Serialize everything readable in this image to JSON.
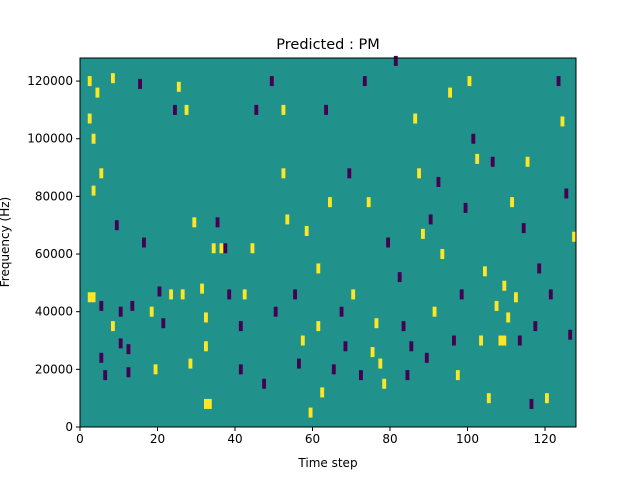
{
  "chart_data": {
    "type": "heatmap",
    "title": "Predicted : PM",
    "xlabel": "Time step",
    "ylabel": "Frequency (Hz)",
    "xlim": [
      0,
      128
    ],
    "ylim": [
      0,
      128000
    ],
    "xticks": [
      0,
      20,
      40,
      60,
      80,
      100,
      120
    ],
    "yticks": [
      0,
      20000,
      40000,
      60000,
      80000,
      100000,
      120000
    ],
    "grid": false,
    "colors": {
      "background": "#21918c",
      "high": "#fde725",
      "low": "#440154"
    },
    "note_cells": [
      {
        "t": 2,
        "f": 45000,
        "dur": 2,
        "level": "high"
      },
      {
        "t": 2,
        "f": 120000,
        "dur": 1,
        "level": "high"
      },
      {
        "t": 2,
        "f": 107000,
        "dur": 1,
        "level": "high"
      },
      {
        "t": 3,
        "f": 82000,
        "dur": 1,
        "level": "high"
      },
      {
        "t": 3,
        "f": 100000,
        "dur": 1,
        "level": "high"
      },
      {
        "t": 4,
        "f": 116000,
        "dur": 1,
        "level": "high"
      },
      {
        "t": 5,
        "f": 88000,
        "dur": 1,
        "level": "high"
      },
      {
        "t": 5,
        "f": 42000,
        "dur": 1,
        "level": "low"
      },
      {
        "t": 5,
        "f": 24000,
        "dur": 1,
        "level": "low"
      },
      {
        "t": 6,
        "f": 18000,
        "dur": 1,
        "level": "low"
      },
      {
        "t": 8,
        "f": 121000,
        "dur": 1,
        "level": "high"
      },
      {
        "t": 8,
        "f": 35000,
        "dur": 1,
        "level": "high"
      },
      {
        "t": 9,
        "f": 70000,
        "dur": 1,
        "level": "low"
      },
      {
        "t": 10,
        "f": 40000,
        "dur": 1,
        "level": "low"
      },
      {
        "t": 10,
        "f": 29000,
        "dur": 1,
        "level": "low"
      },
      {
        "t": 12,
        "f": 19000,
        "dur": 1,
        "level": "low"
      },
      {
        "t": 12,
        "f": 27000,
        "dur": 1,
        "level": "low"
      },
      {
        "t": 13,
        "f": 42000,
        "dur": 1,
        "level": "low"
      },
      {
        "t": 15,
        "f": 119000,
        "dur": 1,
        "level": "low"
      },
      {
        "t": 16,
        "f": 64000,
        "dur": 1,
        "level": "low"
      },
      {
        "t": 18,
        "f": 40000,
        "dur": 1,
        "level": "high"
      },
      {
        "t": 19,
        "f": 20000,
        "dur": 1,
        "level": "high"
      },
      {
        "t": 20,
        "f": 47000,
        "dur": 1,
        "level": "low"
      },
      {
        "t": 21,
        "f": 36000,
        "dur": 1,
        "level": "low"
      },
      {
        "t": 23,
        "f": 46000,
        "dur": 1,
        "level": "high"
      },
      {
        "t": 24,
        "f": 110000,
        "dur": 1,
        "level": "low"
      },
      {
        "t": 25,
        "f": 118000,
        "dur": 1,
        "level": "high"
      },
      {
        "t": 26,
        "f": 46000,
        "dur": 1,
        "level": "high"
      },
      {
        "t": 27,
        "f": 110000,
        "dur": 1,
        "level": "high"
      },
      {
        "t": 28,
        "f": 22000,
        "dur": 1,
        "level": "high"
      },
      {
        "t": 29,
        "f": 71000,
        "dur": 1,
        "level": "high"
      },
      {
        "t": 31,
        "f": 48000,
        "dur": 1,
        "level": "high"
      },
      {
        "t": 32,
        "f": 28000,
        "dur": 1,
        "level": "high"
      },
      {
        "t": 32,
        "f": 38000,
        "dur": 1,
        "level": "high"
      },
      {
        "t": 32,
        "f": 8000,
        "dur": 2,
        "level": "high"
      },
      {
        "t": 34,
        "f": 62000,
        "dur": 1,
        "level": "high"
      },
      {
        "t": 35,
        "f": 71000,
        "dur": 1,
        "level": "low"
      },
      {
        "t": 36,
        "f": 62000,
        "dur": 1,
        "level": "high"
      },
      {
        "t": 37,
        "f": 62000,
        "dur": 1,
        "level": "low"
      },
      {
        "t": 38,
        "f": 46000,
        "dur": 1,
        "level": "low"
      },
      {
        "t": 41,
        "f": 35000,
        "dur": 1,
        "level": "low"
      },
      {
        "t": 41,
        "f": 20000,
        "dur": 1,
        "level": "low"
      },
      {
        "t": 42,
        "f": 46000,
        "dur": 1,
        "level": "high"
      },
      {
        "t": 44,
        "f": 62000,
        "dur": 1,
        "level": "high"
      },
      {
        "t": 45,
        "f": 110000,
        "dur": 1,
        "level": "low"
      },
      {
        "t": 47,
        "f": 15000,
        "dur": 1,
        "level": "low"
      },
      {
        "t": 49,
        "f": 120000,
        "dur": 1,
        "level": "low"
      },
      {
        "t": 50,
        "f": 40000,
        "dur": 1,
        "level": "low"
      },
      {
        "t": 52,
        "f": 110000,
        "dur": 1,
        "level": "high"
      },
      {
        "t": 52,
        "f": 88000,
        "dur": 1,
        "level": "high"
      },
      {
        "t": 53,
        "f": 72000,
        "dur": 1,
        "level": "high"
      },
      {
        "t": 55,
        "f": 46000,
        "dur": 1,
        "level": "low"
      },
      {
        "t": 56,
        "f": 22000,
        "dur": 1,
        "level": "low"
      },
      {
        "t": 57,
        "f": 30000,
        "dur": 1,
        "level": "high"
      },
      {
        "t": 58,
        "f": 68000,
        "dur": 1,
        "level": "high"
      },
      {
        "t": 59,
        "f": 5000,
        "dur": 1,
        "level": "high"
      },
      {
        "t": 61,
        "f": 55000,
        "dur": 1,
        "level": "high"
      },
      {
        "t": 61,
        "f": 35000,
        "dur": 1,
        "level": "high"
      },
      {
        "t": 62,
        "f": 12000,
        "dur": 1,
        "level": "high"
      },
      {
        "t": 63,
        "f": 110000,
        "dur": 1,
        "level": "low"
      },
      {
        "t": 64,
        "f": 78000,
        "dur": 1,
        "level": "high"
      },
      {
        "t": 65,
        "f": 20000,
        "dur": 1,
        "level": "low"
      },
      {
        "t": 67,
        "f": 40000,
        "dur": 1,
        "level": "low"
      },
      {
        "t": 68,
        "f": 28000,
        "dur": 1,
        "level": "low"
      },
      {
        "t": 69,
        "f": 88000,
        "dur": 1,
        "level": "low"
      },
      {
        "t": 70,
        "f": 46000,
        "dur": 1,
        "level": "high"
      },
      {
        "t": 72,
        "f": 18000,
        "dur": 1,
        "level": "low"
      },
      {
        "t": 73,
        "f": 120000,
        "dur": 1,
        "level": "low"
      },
      {
        "t": 74,
        "f": 78000,
        "dur": 1,
        "level": "high"
      },
      {
        "t": 75,
        "f": 26000,
        "dur": 1,
        "level": "high"
      },
      {
        "t": 76,
        "f": 36000,
        "dur": 1,
        "level": "high"
      },
      {
        "t": 77,
        "f": 22000,
        "dur": 1,
        "level": "high"
      },
      {
        "t": 78,
        "f": 15000,
        "dur": 1,
        "level": "high"
      },
      {
        "t": 79,
        "f": 64000,
        "dur": 1,
        "level": "low"
      },
      {
        "t": 81,
        "f": 127000,
        "dur": 1,
        "level": "low"
      },
      {
        "t": 82,
        "f": 52000,
        "dur": 1,
        "level": "low"
      },
      {
        "t": 83,
        "f": 35000,
        "dur": 1,
        "level": "low"
      },
      {
        "t": 84,
        "f": 18000,
        "dur": 1,
        "level": "low"
      },
      {
        "t": 85,
        "f": 28000,
        "dur": 1,
        "level": "low"
      },
      {
        "t": 86,
        "f": 107000,
        "dur": 1,
        "level": "high"
      },
      {
        "t": 87,
        "f": 88000,
        "dur": 1,
        "level": "high"
      },
      {
        "t": 88,
        "f": 67000,
        "dur": 1,
        "level": "high"
      },
      {
        "t": 89,
        "f": 24000,
        "dur": 1,
        "level": "low"
      },
      {
        "t": 90,
        "f": 72000,
        "dur": 1,
        "level": "low"
      },
      {
        "t": 91,
        "f": 40000,
        "dur": 1,
        "level": "high"
      },
      {
        "t": 92,
        "f": 85000,
        "dur": 1,
        "level": "low"
      },
      {
        "t": 93,
        "f": 60000,
        "dur": 1,
        "level": "high"
      },
      {
        "t": 95,
        "f": 116000,
        "dur": 1,
        "level": "high"
      },
      {
        "t": 96,
        "f": 30000,
        "dur": 1,
        "level": "low"
      },
      {
        "t": 97,
        "f": 18000,
        "dur": 1,
        "level": "high"
      },
      {
        "t": 98,
        "f": 46000,
        "dur": 1,
        "level": "low"
      },
      {
        "t": 99,
        "f": 76000,
        "dur": 1,
        "level": "low"
      },
      {
        "t": 100,
        "f": 120000,
        "dur": 1,
        "level": "high"
      },
      {
        "t": 101,
        "f": 100000,
        "dur": 1,
        "level": "low"
      },
      {
        "t": 102,
        "f": 93000,
        "dur": 1,
        "level": "high"
      },
      {
        "t": 103,
        "f": 30000,
        "dur": 1,
        "level": "high"
      },
      {
        "t": 104,
        "f": 54000,
        "dur": 1,
        "level": "high"
      },
      {
        "t": 105,
        "f": 10000,
        "dur": 1,
        "level": "high"
      },
      {
        "t": 106,
        "f": 92000,
        "dur": 1,
        "level": "low"
      },
      {
        "t": 107,
        "f": 42000,
        "dur": 1,
        "level": "high"
      },
      {
        "t": 108,
        "f": 30000,
        "dur": 2,
        "level": "high"
      },
      {
        "t": 109,
        "f": 49000,
        "dur": 1,
        "level": "high"
      },
      {
        "t": 110,
        "f": 38000,
        "dur": 1,
        "level": "high"
      },
      {
        "t": 111,
        "f": 78000,
        "dur": 1,
        "level": "high"
      },
      {
        "t": 112,
        "f": 45000,
        "dur": 1,
        "level": "high"
      },
      {
        "t": 113,
        "f": 30000,
        "dur": 1,
        "level": "low"
      },
      {
        "t": 114,
        "f": 69000,
        "dur": 1,
        "level": "low"
      },
      {
        "t": 115,
        "f": 92000,
        "dur": 1,
        "level": "high"
      },
      {
        "t": 116,
        "f": 8000,
        "dur": 1,
        "level": "low"
      },
      {
        "t": 117,
        "f": 35000,
        "dur": 1,
        "level": "low"
      },
      {
        "t": 118,
        "f": 55000,
        "dur": 1,
        "level": "low"
      },
      {
        "t": 120,
        "f": 10000,
        "dur": 1,
        "level": "high"
      },
      {
        "t": 121,
        "f": 46000,
        "dur": 1,
        "level": "low"
      },
      {
        "t": 123,
        "f": 120000,
        "dur": 1,
        "level": "low"
      },
      {
        "t": 124,
        "f": 106000,
        "dur": 1,
        "level": "high"
      },
      {
        "t": 125,
        "f": 81000,
        "dur": 1,
        "level": "low"
      },
      {
        "t": 126,
        "f": 32000,
        "dur": 1,
        "level": "low"
      },
      {
        "t": 127,
        "f": 66000,
        "dur": 1,
        "level": "high"
      }
    ]
  }
}
